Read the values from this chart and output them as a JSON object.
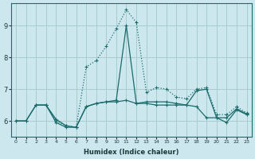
{
  "xlabel": "Humidex (Indice chaleur)",
  "bg_color": "#cce8ee",
  "grid_color": "#a8cccc",
  "line_color": "#1a6b6b",
  "x_ticks": [
    0,
    1,
    2,
    3,
    4,
    5,
    6,
    7,
    8,
    9,
    10,
    11,
    12,
    13,
    14,
    15,
    16,
    17,
    18,
    19,
    20,
    21,
    22,
    23
  ],
  "y_ticks": [
    6,
    7,
    8,
    9
  ],
  "ylim": [
    5.5,
    9.7
  ],
  "xlim": [
    -0.5,
    23.5
  ],
  "line_dotted_x": [
    2,
    3,
    4,
    5,
    6,
    7,
    8,
    9,
    10,
    11,
    12,
    13,
    14,
    15,
    16,
    17,
    18,
    19,
    20,
    21,
    22,
    23
  ],
  "line_dotted_y": [
    6.5,
    6.5,
    6.0,
    5.85,
    5.8,
    7.7,
    7.9,
    8.35,
    8.9,
    9.5,
    9.1,
    6.9,
    7.05,
    7.0,
    6.75,
    6.7,
    7.0,
    7.05,
    6.2,
    6.2,
    6.45,
    6.25
  ],
  "line_solid1_x": [
    0,
    1,
    2,
    3,
    4,
    5,
    6,
    7,
    8,
    9,
    10,
    11,
    12,
    13,
    14,
    15,
    16,
    17,
    18,
    19,
    20,
    21,
    22,
    23
  ],
  "line_solid1_y": [
    6.0,
    6.0,
    6.5,
    6.5,
    5.95,
    5.8,
    5.8,
    6.45,
    6.55,
    6.6,
    6.65,
    9.0,
    6.55,
    6.6,
    6.6,
    6.6,
    6.55,
    6.5,
    6.45,
    6.1,
    6.1,
    5.95,
    6.35,
    6.2
  ],
  "line_solid2_x": [
    0,
    1,
    2,
    3,
    4,
    5,
    6,
    7,
    8,
    9,
    10,
    11,
    12,
    13,
    14,
    15,
    16,
    17,
    18,
    19,
    20,
    21,
    22,
    23
  ],
  "line_solid2_y": [
    6.0,
    6.0,
    6.5,
    6.5,
    6.05,
    5.85,
    5.8,
    6.45,
    6.55,
    6.6,
    6.6,
    6.65,
    6.55,
    6.55,
    6.5,
    6.5,
    6.5,
    6.5,
    6.95,
    7.0,
    6.1,
    6.1,
    6.38,
    6.22
  ]
}
